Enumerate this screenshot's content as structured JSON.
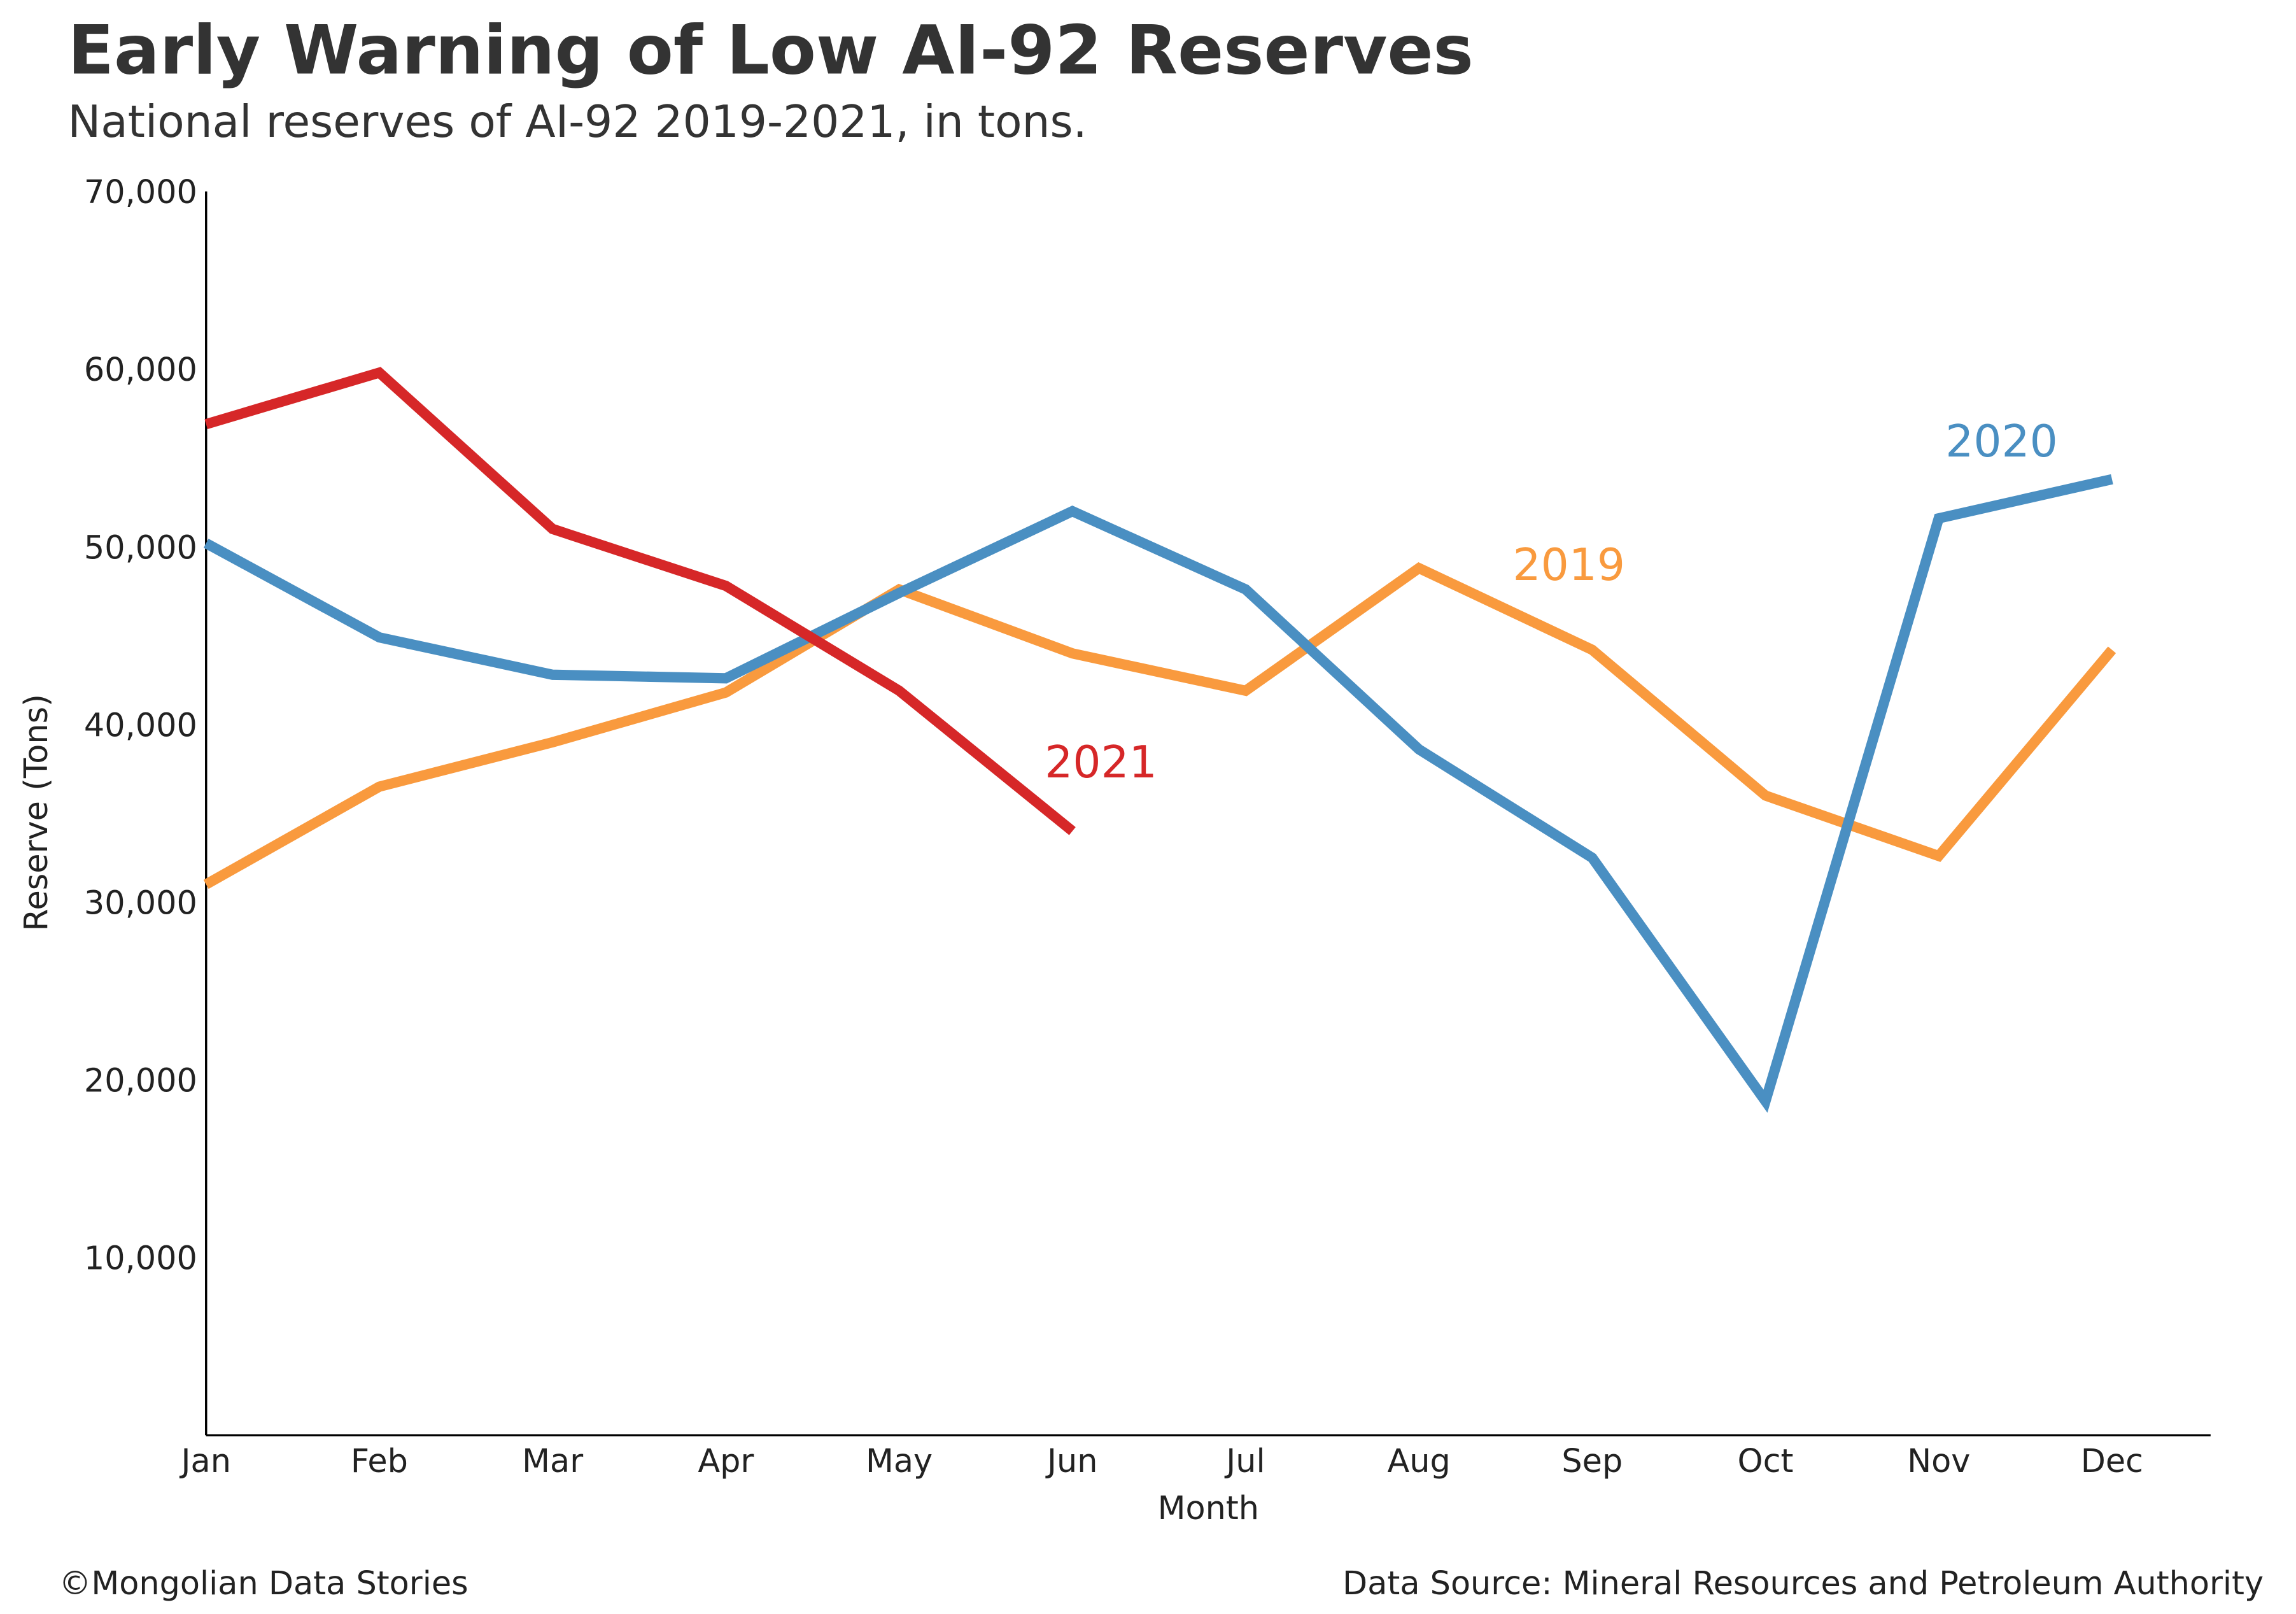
{
  "chart_data": {
    "type": "line",
    "title": "Early Warning of Low AI-92 Reserves",
    "subtitle": "National reserves of AI-92 2019-2021, in tons.",
    "x_label": "Month",
    "y_label": "Reserve (Tons)",
    "footer_left": "©Mongolian Data Stories",
    "footer_right": "Data Source: Mineral Resources and Petroleum Authority",
    "categories": [
      "Jan",
      "Feb",
      "Mar",
      "Apr",
      "May",
      "Jun",
      "Jul",
      "Aug",
      "Sep",
      "Oct",
      "Nov",
      "Dec"
    ],
    "series": [
      {
        "name": "2019",
        "color": "#f99a3e",
        "values": [
          31000,
          36500,
          39000,
          41800,
          47600,
          44000,
          41900,
          48800,
          44200,
          36000,
          32600,
          44200
        ]
      },
      {
        "name": "2020",
        "color": "#4a8fc2",
        "values": [
          50200,
          44900,
          42800,
          42600,
          47400,
          52000,
          47600,
          38600,
          32500,
          18800,
          51600,
          53800
        ]
      },
      {
        "name": "2021",
        "color": "#d62728",
        "values": [
          56900,
          59800,
          51000,
          47800,
          41900,
          34000,
          null,
          null,
          null,
          null,
          null,
          null
        ]
      }
    ],
    "ylim": [
      0,
      70000
    ],
    "yticks": [
      {
        "value": 10000,
        "label": "10,000"
      },
      {
        "value": 20000,
        "label": "20,000"
      },
      {
        "value": 30000,
        "label": "30,000"
      },
      {
        "value": 40000,
        "label": "40,000"
      },
      {
        "value": 50000,
        "label": "50,000"
      },
      {
        "value": 60000,
        "label": "60,000"
      },
      {
        "value": 70000,
        "label": "70,000"
      }
    ],
    "grid": false
  }
}
